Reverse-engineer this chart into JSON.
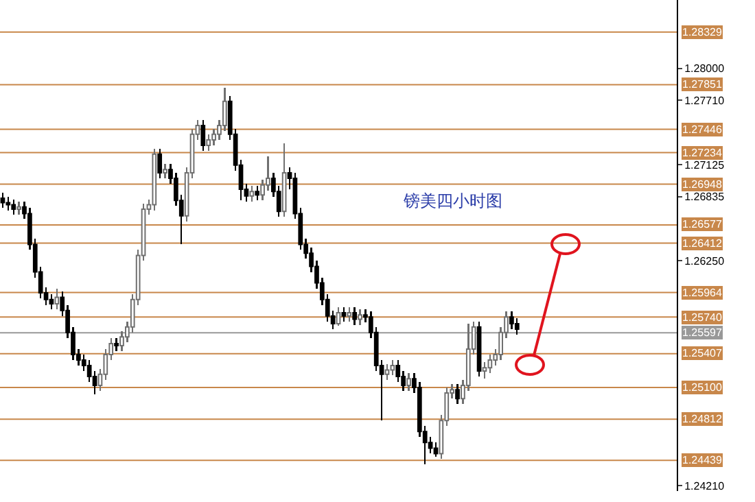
{
  "chart_data": {
    "type": "candlestick",
    "title": "镑美四小时图",
    "categories": [
      null,
      null,
      null,
      null,
      null,
      null,
      null,
      null,
      null,
      null,
      null,
      null,
      null,
      null,
      null,
      null,
      null,
      null,
      null,
      null,
      null,
      null,
      null,
      null,
      null,
      null,
      null,
      null,
      null,
      null,
      null,
      null,
      null,
      null,
      null,
      null,
      null,
      null,
      null,
      null,
      null,
      null,
      null,
      null,
      null,
      null,
      null,
      null,
      null,
      null,
      null,
      null,
      null,
      null,
      null,
      null,
      null,
      null,
      null,
      null,
      null,
      null,
      null,
      null,
      null,
      null,
      null,
      null,
      null,
      null,
      null,
      null,
      null,
      null,
      null,
      null,
      null,
      null,
      null,
      null,
      null,
      null,
      null,
      null,
      null,
      null,
      null,
      null,
      null,
      null,
      null,
      null,
      null,
      null,
      null,
      null,
      null,
      null,
      null,
      null,
      null,
      null,
      null,
      null,
      null,
      null,
      null,
      null,
      null,
      null,
      null,
      null,
      null,
      null,
      null,
      null,
      null,
      null,
      null,
      null,
      null,
      null,
      null,
      null,
      null
    ],
    "ohlc": [
      [
        1.2682,
        1.2687,
        1.2673,
        1.2678
      ],
      [
        1.2678,
        1.2683,
        1.2671,
        1.2676
      ],
      [
        1.2676,
        1.2681,
        1.2667,
        1.2672
      ],
      [
        1.2672,
        1.2679,
        1.2667,
        1.2674
      ],
      [
        1.2674,
        1.2679,
        1.2663,
        1.2668
      ],
      [
        1.2668,
        1.2673,
        1.2635,
        1.264
      ],
      [
        1.264,
        1.2645,
        1.261,
        1.2615
      ],
      [
        1.2615,
        1.262,
        1.2591,
        1.2596
      ],
      [
        1.2596,
        1.2601,
        1.2585,
        1.259
      ],
      [
        1.259,
        1.2595,
        1.2581,
        1.2586
      ],
      [
        1.2586,
        1.26,
        1.2581,
        1.2592
      ],
      [
        1.2592,
        1.2597,
        1.2575,
        1.258
      ],
      [
        1.258,
        1.2585,
        1.2555,
        1.256
      ],
      [
        1.256,
        1.2565,
        1.2535,
        1.254
      ],
      [
        1.254,
        1.2545,
        1.253,
        1.2535
      ],
      [
        1.2535,
        1.254,
        1.2525,
        1.253
      ],
      [
        1.253,
        1.2535,
        1.2515,
        1.252
      ],
      [
        1.252,
        1.2525,
        1.2504,
        1.2512
      ],
      [
        1.2512,
        1.2527,
        1.2507,
        1.2522
      ],
      [
        1.2522,
        1.2545,
        1.2517,
        1.254
      ],
      [
        1.254,
        1.2555,
        1.2535,
        1.255
      ],
      [
        1.255,
        1.2555,
        1.2543,
        1.2548
      ],
      [
        1.2548,
        1.2561,
        1.2543,
        1.2556
      ],
      [
        1.2556,
        1.257,
        1.2551,
        1.2565
      ],
      [
        1.2565,
        1.2595,
        1.256,
        1.259
      ],
      [
        1.259,
        1.2635,
        1.2585,
        1.263
      ],
      [
        1.263,
        1.2677,
        1.2625,
        1.2672
      ],
      [
        1.2672,
        1.2681,
        1.2667,
        1.2676
      ],
      [
        1.2676,
        1.2727,
        1.2671,
        1.2722
      ],
      [
        1.2722,
        1.2727,
        1.27,
        1.2705
      ],
      [
        1.2705,
        1.2713,
        1.27,
        1.2708
      ],
      [
        1.2708,
        1.2713,
        1.2695,
        1.27
      ],
      [
        1.27,
        1.2705,
        1.2675,
        1.268
      ],
      [
        1.268,
        1.2685,
        1.264,
        1.2666
      ],
      [
        1.2666,
        1.271,
        1.2661,
        1.2705
      ],
      [
        1.2705,
        1.2745,
        1.27,
        1.274
      ],
      [
        1.274,
        1.2753,
        1.2735,
        1.2748
      ],
      [
        1.2748,
        1.2753,
        1.2725,
        1.273
      ],
      [
        1.273,
        1.274,
        1.2725,
        1.2735
      ],
      [
        1.2735,
        1.2745,
        1.273,
        1.274
      ],
      [
        1.274,
        1.2753,
        1.2735,
        1.2748
      ],
      [
        1.2748,
        1.2782,
        1.2743,
        1.277
      ],
      [
        1.277,
        1.2775,
        1.2735,
        1.274
      ],
      [
        1.274,
        1.2745,
        1.2707,
        1.2712
      ],
      [
        1.2712,
        1.2717,
        1.268,
        1.269
      ],
      [
        1.269,
        1.2695,
        1.2679,
        1.2684
      ],
      [
        1.2684,
        1.2693,
        1.2679,
        1.2688
      ],
      [
        1.2688,
        1.2693,
        1.268,
        1.2685
      ],
      [
        1.2685,
        1.2699,
        1.268,
        1.2694
      ],
      [
        1.2694,
        1.272,
        1.2689,
        1.27
      ],
      [
        1.27,
        1.2705,
        1.2683,
        1.2688
      ],
      [
        1.2688,
        1.2693,
        1.2665,
        1.267
      ],
      [
        1.267,
        1.2732,
        1.2665,
        1.2705
      ],
      [
        1.2705,
        1.271,
        1.269,
        1.27
      ],
      [
        1.27,
        1.2705,
        1.2663,
        1.2668
      ],
      [
        1.2668,
        1.2673,
        1.2635,
        1.264
      ],
      [
        1.264,
        1.2645,
        1.2627,
        1.2632
      ],
      [
        1.2632,
        1.2637,
        1.2615,
        1.262
      ],
      [
        1.262,
        1.2625,
        1.26,
        1.2605
      ],
      [
        1.2605,
        1.261,
        1.2585,
        1.259
      ],
      [
        1.259,
        1.2595,
        1.257,
        1.2575
      ],
      [
        1.2575,
        1.258,
        1.2563,
        1.2568
      ],
      [
        1.2568,
        1.2583,
        1.2566,
        1.2578
      ],
      [
        1.2578,
        1.2583,
        1.257,
        1.2575
      ],
      [
        1.2575,
        1.2583,
        1.257,
        1.2578
      ],
      [
        1.2578,
        1.2583,
        1.2567,
        1.2572
      ],
      [
        1.2572,
        1.2581,
        1.2567,
        1.2576
      ],
      [
        1.2576,
        1.2581,
        1.2569,
        1.2574
      ],
      [
        1.2574,
        1.2579,
        1.2555,
        1.256
      ],
      [
        1.256,
        1.2565,
        1.2525,
        1.253
      ],
      [
        1.253,
        1.2535,
        1.248,
        1.2522
      ],
      [
        1.2522,
        1.2531,
        1.2517,
        1.2526
      ],
      [
        1.2526,
        1.2535,
        1.2521,
        1.253
      ],
      [
        1.253,
        1.2535,
        1.2515,
        1.252
      ],
      [
        1.252,
        1.2525,
        1.2507,
        1.2512
      ],
      [
        1.2512,
        1.2523,
        1.2507,
        1.2518
      ],
      [
        1.2518,
        1.2523,
        1.2505,
        1.251
      ],
      [
        1.251,
        1.2515,
        1.2465,
        1.247
      ],
      [
        1.247,
        1.2475,
        1.244,
        1.246
      ],
      [
        1.246,
        1.2465,
        1.245,
        1.2455
      ],
      [
        1.2455,
        1.246,
        1.2447,
        1.245
      ],
      [
        1.245,
        1.2485,
        1.2445,
        1.248
      ],
      [
        1.248,
        1.251,
        1.2475,
        1.2505
      ],
      [
        1.2505,
        1.2513,
        1.25,
        1.2508
      ],
      [
        1.2508,
        1.2513,
        1.2495,
        1.25
      ],
      [
        1.25,
        1.2517,
        1.2495,
        1.2512
      ],
      [
        1.2512,
        1.2568,
        1.2507,
        1.2545
      ],
      [
        1.2545,
        1.257,
        1.254,
        1.2565
      ],
      [
        1.2565,
        1.257,
        1.252,
        1.2525
      ],
      [
        1.2525,
        1.2533,
        1.2518,
        1.2528
      ],
      [
        1.2528,
        1.254,
        1.2523,
        1.2535
      ],
      [
        1.2535,
        1.2545,
        1.253,
        1.254
      ],
      [
        1.254,
        1.2565,
        1.2535,
        1.256
      ],
      [
        1.256,
        1.2579,
        1.2555,
        1.2574
      ],
      [
        1.2574,
        1.2579,
        1.2563,
        1.2568
      ],
      [
        1.2568,
        1.2573,
        1.2558,
        1.2563
      ],
      null,
      null,
      null,
      null,
      null,
      null,
      null,
      null,
      null,
      null,
      null,
      null,
      null,
      null,
      null,
      null,
      null,
      null,
      null,
      null,
      null,
      null,
      null,
      null,
      null,
      null,
      null,
      null,
      null
    ],
    "ylim": [
      1.2416,
      1.2862
    ],
    "yticks": [
      {
        "value": 1.28,
        "label": "1.28000"
      },
      {
        "value": 1.2771,
        "label": "1.27710"
      },
      {
        "value": 1.27125,
        "label": "1.27125"
      },
      {
        "value": 1.26835,
        "label": "1.26835"
      },
      {
        "value": 1.2625,
        "label": "1.26250"
      },
      {
        "value": 1.2421,
        "label": "1.24210"
      }
    ],
    "ref_lines": [
      {
        "axis": "y",
        "value": 1.28329,
        "label": "1.28329",
        "color": "#c8874a"
      },
      {
        "axis": "y",
        "value": 1.27851,
        "label": "1.27851",
        "color": "#c8874a"
      },
      {
        "axis": "y",
        "value": 1.27446,
        "label": "1.27446",
        "color": "#c8874a"
      },
      {
        "axis": "y",
        "value": 1.27234,
        "label": "1.27234",
        "color": "#c8874a"
      },
      {
        "axis": "y",
        "value": 1.26948,
        "label": "1.26948",
        "color": "#c8874a"
      },
      {
        "axis": "y",
        "value": 1.26577,
        "label": "1.26577",
        "color": "#c8874a"
      },
      {
        "axis": "y",
        "value": 1.26412,
        "label": "1.26412",
        "color": "#c8874a"
      },
      {
        "axis": "y",
        "value": 1.25964,
        "label": "1.25964",
        "color": "#c8874a"
      },
      {
        "axis": "y",
        "value": 1.2574,
        "label": "1.25740",
        "color": "#c8874a"
      },
      {
        "axis": "y",
        "value": 1.25597,
        "label": "1.25597",
        "color": "#999999"
      },
      {
        "axis": "y",
        "value": 1.25407,
        "label": "1.25407",
        "color": "#c8874a"
      },
      {
        "axis": "y",
        "value": 1.251,
        "label": "1.25100",
        "color": "#c8874a"
      },
      {
        "axis": "y",
        "value": 1.24812,
        "label": "1.24812",
        "color": "#c8874a"
      },
      {
        "axis": "y",
        "value": 1.24439,
        "label": "1.24439",
        "color": "#c8874a"
      }
    ],
    "grid": false,
    "legend": false
  }
}
